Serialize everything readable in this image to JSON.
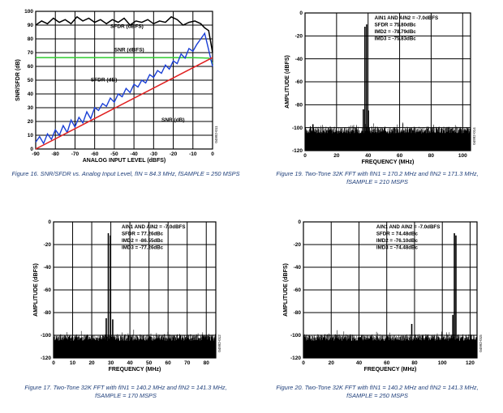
{
  "colors": {
    "grid": "#000000",
    "caption": "#1f3f7a",
    "snr_line": "#2ecc2e",
    "sfdr_db_line": "#1a3fd6",
    "snr_db_line": "#e02020",
    "trace": "#000000"
  },
  "chart_data": [
    {
      "type": "line",
      "figure_caption_line1": "Figure 16. SNR/SFDR vs. Analog Input Level, fIN = 84.3 MHz, fSAMPLE = 250 MSPS",
      "figure_caption_line2": "",
      "xlabel": "ANALOG INPUT LEVEL (dBFS)",
      "ylabel": "SNR/SFDR (dB)",
      "xlim": [
        -90,
        0
      ],
      "ylim": [
        0,
        100
      ],
      "xticks": [
        -90,
        -80,
        -70,
        -60,
        -50,
        -40,
        -30,
        -20,
        -10,
        0
      ],
      "yticks": [
        0,
        10,
        20,
        30,
        40,
        50,
        60,
        70,
        80,
        90,
        100
      ],
      "tick_labels_x": [
        "-90",
        "-80",
        "-70",
        "-60",
        "-50",
        "-40",
        "-30",
        "-20",
        "-10",
        "0"
      ],
      "tick_labels_y": [
        "0",
        "10",
        "20",
        "30",
        "40",
        "50",
        "60",
        "70",
        "80",
        "90",
        "100"
      ],
      "code_id": "04992-011",
      "series": [
        {
          "name": "SFDR (dBFS)",
          "color": "#000000",
          "x": [
            -90,
            -87,
            -84,
            -81,
            -78,
            -75,
            -72,
            -69,
            -66,
            -63,
            -60,
            -57,
            -54,
            -51,
            -48,
            -45,
            -42,
            -39,
            -36,
            -33,
            -30,
            -27,
            -24,
            -21,
            -18,
            -15,
            -12,
            -9,
            -6,
            -4,
            -2,
            -1,
            0
          ],
          "y": [
            90,
            93,
            91,
            95,
            92,
            94,
            91,
            96,
            93,
            95,
            92,
            94,
            91,
            94,
            92,
            95,
            90,
            93,
            92,
            94,
            91,
            93,
            92,
            96,
            94,
            90,
            92,
            93,
            91,
            88,
            86,
            78,
            70
          ]
        },
        {
          "name": "SNR (dBFS)",
          "color": "#2ecc2e",
          "x": [
            -90,
            -80,
            -70,
            -60,
            -50,
            -40,
            -30,
            -20,
            -10,
            -5,
            -2,
            -1,
            0
          ],
          "y": [
            66.4,
            66.4,
            66.4,
            66.4,
            66.4,
            66.4,
            66.4,
            66.4,
            66.3,
            66.2,
            66.0,
            65.0,
            62.0
          ]
        },
        {
          "name": "SFDR (dB)",
          "color": "#1a3fd6",
          "x": [
            -90,
            -88,
            -86,
            -84,
            -82,
            -80,
            -78,
            -76,
            -74,
            -72,
            -70,
            -68,
            -66,
            -64,
            -62,
            -60,
            -58,
            -56,
            -54,
            -52,
            -50,
            -48,
            -46,
            -44,
            -42,
            -40,
            -38,
            -36,
            -34,
            -32,
            -30,
            -28,
            -26,
            -24,
            -22,
            -20,
            -18,
            -16,
            -14,
            -12,
            -10,
            -8,
            -6,
            -4,
            -2,
            0
          ],
          "y": [
            5,
            9,
            4,
            11,
            7,
            14,
            10,
            17,
            12,
            21,
            16,
            23,
            19,
            27,
            22,
            30,
            28,
            33,
            31,
            37,
            34,
            40,
            38,
            44,
            41,
            47,
            45,
            50,
            48,
            54,
            52,
            57,
            55,
            61,
            58,
            64,
            62,
            69,
            66,
            73,
            71,
            76,
            80,
            84,
            72,
            60
          ]
        },
        {
          "name": "SNR (dB)",
          "color": "#e02020",
          "x": [
            -90,
            0
          ],
          "y": [
            0,
            66.4
          ]
        }
      ],
      "labels": [
        "SFDR (dBFS)",
        "SNR (dBFS)",
        "SFDR (dB)",
        "SNR (dB)"
      ]
    },
    {
      "type": "line",
      "figure_caption_line1": "Figure 19. Two-Tone 32K FFT with fIN1 = 170.2 MHz and fIN2 = 171.3 MHz,",
      "figure_caption_line2": "fSAMPLE = 210 MSPS",
      "xlabel": "FREQUENCY (MHz)",
      "ylabel": "AMPLITUDE (dBFS)",
      "xlim": [
        0,
        105
      ],
      "ylim": [
        -120,
        0
      ],
      "xticks": [
        0,
        20,
        40,
        60,
        80,
        100
      ],
      "yticks": [
        -120,
        -100,
        -80,
        -60,
        -40,
        -20,
        0
      ],
      "tick_labels_x": [
        "0",
        "20",
        "40",
        "60",
        "80",
        "100"
      ],
      "tick_labels_y": [
        "-120",
        "-100",
        "-80",
        "-60",
        "-40",
        "-20",
        "0"
      ],
      "code_id": "04992-014",
      "annotation": [
        "AIN1 AND AIN2 = -7.0dBFS",
        "SFDR = 75.80dBc",
        "IMD2 = -78.79dBc",
        "IMD3 = -75.83dBc"
      ],
      "noise_floor": -104,
      "spurs": [
        {
          "x": 38.0,
          "y": -12
        },
        {
          "x": 39.1,
          "y": -10
        },
        {
          "x": 37.0,
          "y": -84
        },
        {
          "x": 40.2,
          "y": -85
        },
        {
          "x": 5,
          "y": -97
        }
      ]
    },
    {
      "type": "line",
      "figure_caption_line1": "Figure 17. Two-Tone 32K FFT with fIN1 = 140.2 MHz and fIN2 = 141.3 MHz,",
      "figure_caption_line2": "fSAMPLE = 170 MSPS",
      "xlabel": "FREQUENCY (MHz)",
      "ylabel": "AMPLITUDE (dBFS)",
      "xlim": [
        0,
        85
      ],
      "ylim": [
        -120,
        0
      ],
      "xticks": [
        0,
        10,
        20,
        30,
        40,
        50,
        60,
        70,
        80
      ],
      "yticks": [
        -120,
        -100,
        -80,
        -60,
        -40,
        -20,
        0
      ],
      "tick_labels_x": [
        "0",
        "10",
        "20",
        "30",
        "40",
        "50",
        "60",
        "70",
        "80"
      ],
      "tick_labels_y": [
        "-120",
        "-100",
        "-80",
        "-60",
        "-40",
        "-20",
        "0"
      ],
      "code_id": "04992-012",
      "annotation": [
        "AIN1 AND AIN2 = -7.0dBFS",
        "SFDR = 77.26dBc",
        "IMD2 = -86.55dBc",
        "IMD3 = -77.26dBc"
      ],
      "noise_floor": -104,
      "spurs": [
        {
          "x": 28.7,
          "y": -10
        },
        {
          "x": 29.8,
          "y": -12
        },
        {
          "x": 27.6,
          "y": -85
        },
        {
          "x": 31.0,
          "y": -86
        }
      ]
    },
    {
      "type": "line",
      "figure_caption_line1": "Figure 20. Two-Tone 32K FFT with fIN1 = 140.2 MHz and fIN2 = 141.3 MHz,",
      "figure_caption_line2": "fSAMPLE = 250 MSPS",
      "xlabel": "FREQUENCY (MHz)",
      "ylabel": "AMPLITUDE (dBFS)",
      "xlim": [
        0,
        125
      ],
      "ylim": [
        -120,
        0
      ],
      "xticks": [
        0,
        20,
        40,
        60,
        80,
        100,
        120
      ],
      "yticks": [
        -120,
        -100,
        -80,
        -60,
        -40,
        -20,
        0
      ],
      "tick_labels_x": [
        "0",
        "20",
        "40",
        "60",
        "80",
        "100",
        "120"
      ],
      "tick_labels_y": [
        "-120",
        "-100",
        "-80",
        "-60",
        "-40",
        "-20",
        "0"
      ],
      "code_id": "04992-015",
      "annotation": [
        "AIN1 AND AIN2 = -7.0dBFS",
        "SFDR = 74.48dBc",
        "IMD2 = -76.10dBc",
        "IMD3 = -74.48dBc"
      ],
      "noise_floor": -104,
      "spurs": [
        {
          "x": 108.7,
          "y": -10
        },
        {
          "x": 109.8,
          "y": -12
        },
        {
          "x": 78.0,
          "y": -90
        },
        {
          "x": 107.6,
          "y": -82
        }
      ]
    }
  ]
}
